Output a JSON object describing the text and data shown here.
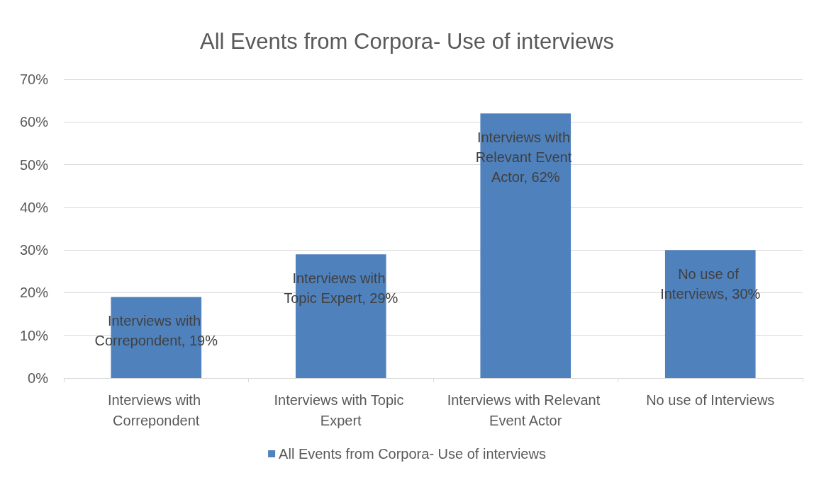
{
  "chart_data": {
    "type": "bar",
    "title": "All Events from Corpora- Use of interviews",
    "categories": [
      "Interviews with Correpondent",
      "Interviews with Topic Expert",
      "Interviews with Relevant Event Actor",
      "No use of Interviews"
    ],
    "series": [
      {
        "name": "All Events from Corpora- Use of interviews",
        "color": "#4f81bd",
        "values": [
          19,
          29,
          62,
          30
        ],
        "value_labels": [
          "Interviews with Correpondent, 19%",
          "Interviews with Topic Expert, 29%",
          "Interviews with Relevant Event Actor, 62%",
          "No use of Interviews, 30%"
        ]
      }
    ],
    "ylim": [
      0,
      70
    ],
    "yticks": [
      {
        "value": 0,
        "label": "0%"
      },
      {
        "value": 10,
        "label": "10%"
      },
      {
        "value": 20,
        "label": "20%"
      },
      {
        "value": 30,
        "label": "30%"
      },
      {
        "value": 40,
        "label": "40%"
      },
      {
        "value": 50,
        "label": "50%"
      },
      {
        "value": 60,
        "label": "60%"
      },
      {
        "value": 70,
        "label": "70%"
      }
    ],
    "grid": "y",
    "legend": "bottom"
  }
}
